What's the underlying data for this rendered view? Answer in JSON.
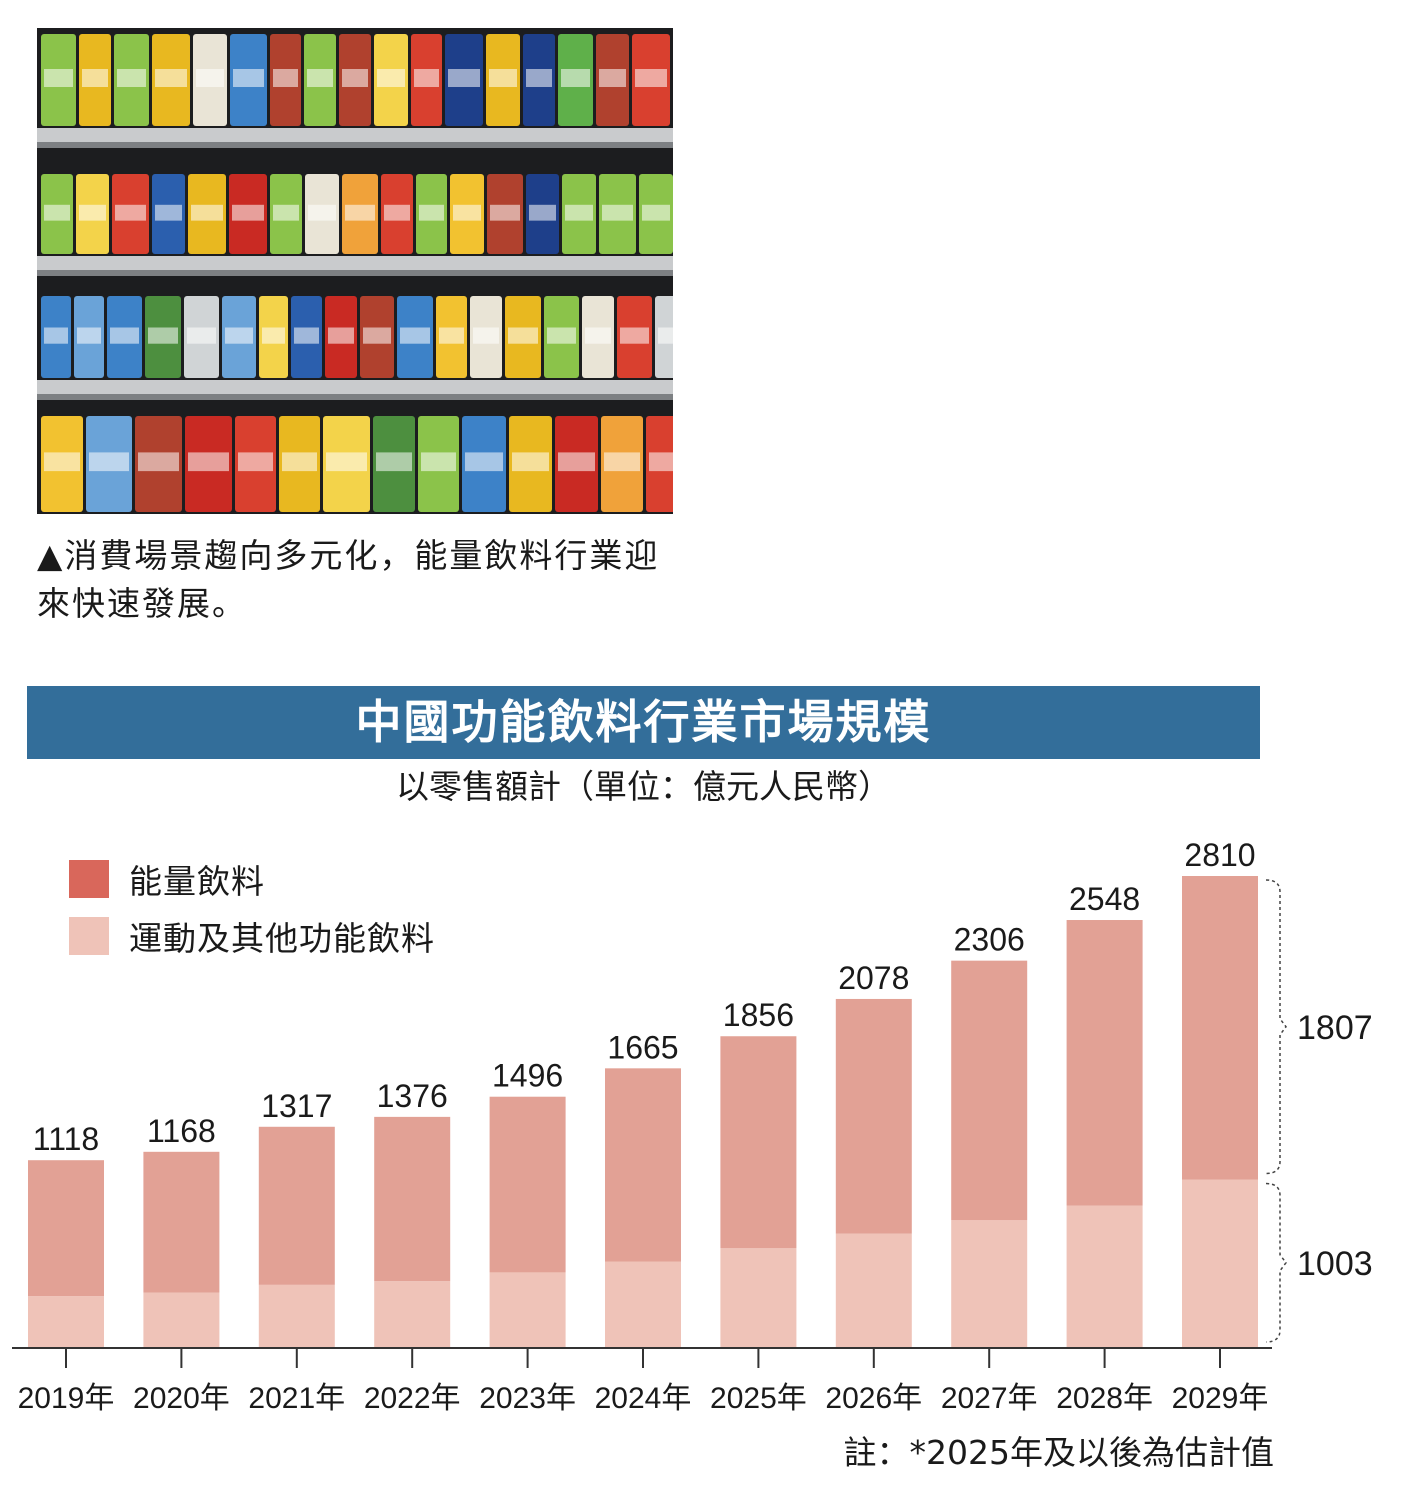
{
  "photo": {
    "alt": "drink-shelves-photo",
    "colors": {
      "shelf_bg": "#1c1d1f",
      "shelf_edge": "#c9cbcd"
    }
  },
  "caption": {
    "text": "▲消費場景趨向多元化，能量飲料行業迎來快速發展。"
  },
  "chart_title": "中國功能飲料行業市場規模",
  "chart_subtitle": "以零售額計（單位：億元人民幣）",
  "note": "註：*2025年及以後為估計值",
  "colors": {
    "title_bg": "#336e9a",
    "energy": "#e2a195",
    "energy_legend": "#d9675b",
    "sports": "#efc3b8",
    "axis": "#333333"
  },
  "chart_data": {
    "type": "bar",
    "stacked": true,
    "categories": [
      "2019年",
      "2020年",
      "2021年",
      "2022年",
      "2023年",
      "2024年",
      "2025年",
      "2026年",
      "2027年",
      "2028年",
      "2029年"
    ],
    "totals": [
      1118,
      1168,
      1317,
      1376,
      1496,
      1665,
      1856,
      2078,
      2306,
      2548,
      2810
    ],
    "series": [
      {
        "name": "運動及其他功能飲料",
        "values": [
          309,
          330,
          376,
          398,
          450,
          515,
          594,
          681,
          762,
          848,
          1003
        ]
      },
      {
        "name": "能量飲料",
        "values": [
          809,
          838,
          941,
          978,
          1046,
          1150,
          1262,
          1397,
          1544,
          1700,
          1807
        ]
      }
    ],
    "bracket_labels": {
      "energy_2029": "1807",
      "sports_2029": "1003"
    },
    "ylim": [
      0,
      2810
    ],
    "grid": false,
    "legend": "top-left"
  }
}
